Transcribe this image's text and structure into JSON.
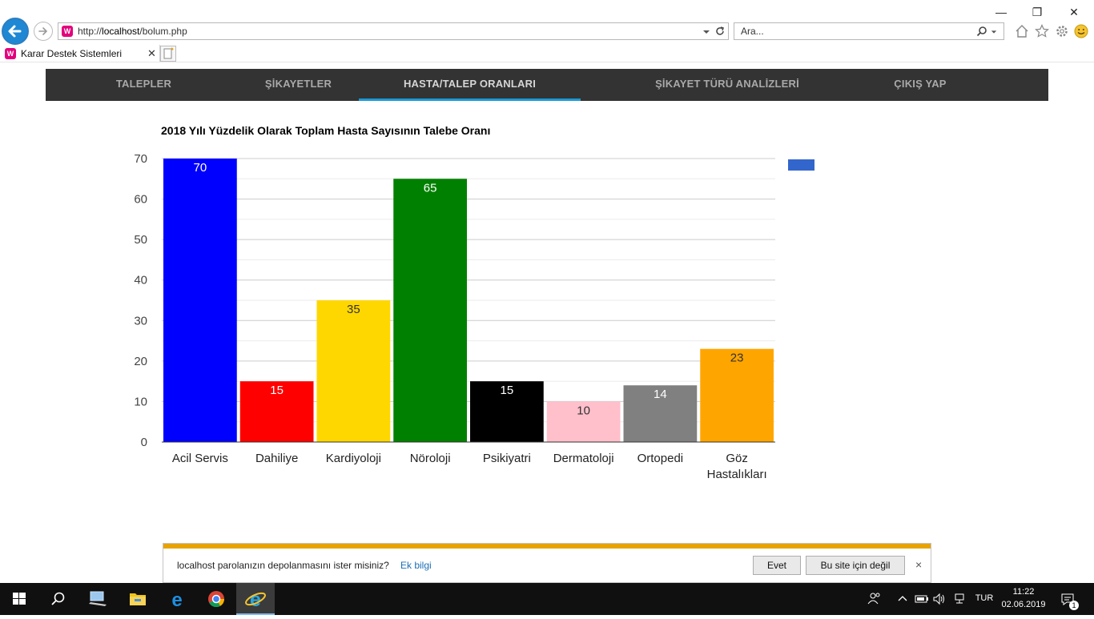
{
  "browser": {
    "address_prefix": "http://",
    "address_host": "localhost",
    "address_path": "/bolum.php",
    "search_placeholder": "Ara...",
    "favicon_letter": "W",
    "tab_title": "Karar Destek Sistemleri",
    "window_controls": {
      "minimize": "—",
      "restore": "❐",
      "close": "✕"
    },
    "icons": [
      "back-arrow-icon",
      "forward-arrow-icon",
      "dropdown-icon",
      "refresh-icon",
      "search-icon",
      "home-icon",
      "favorites-star-icon",
      "settings-gear-icon",
      "smiley-feedback-icon"
    ]
  },
  "nav": {
    "items": [
      {
        "label": "TALEPLER",
        "active": false
      },
      {
        "label": "ŞİKAYETLER",
        "active": false
      },
      {
        "label": "HASTA/TALEP ORANLARI",
        "active": true
      },
      {
        "label": "ŞİKAYET TÜRÜ ANALİZLERİ",
        "active": false
      },
      {
        "label": "ÇIKIŞ YAP",
        "active": false
      }
    ],
    "accent_color": "#1a9ad6",
    "background_color": "#333333"
  },
  "chart_data": {
    "type": "bar",
    "title": "2018 Yılı Yüzdelik Olarak Toplam Hasta Sayısının Talebe Oranı",
    "categories": [
      "Acil Servis",
      "Dahiliye",
      "Kardiyoloji",
      "Nöroloji",
      "Psikiyatri",
      "Dermatoloji",
      "Ortopedi",
      "Göz Hastalıkları"
    ],
    "values": [
      70,
      15,
      35,
      65,
      15,
      10,
      14,
      23
    ],
    "colors": [
      "#0000ff",
      "#ff0000",
      "#ffd700",
      "#008000",
      "#000000",
      "#ffc0cb",
      "#808080",
      "#ffa500"
    ],
    "label_colors": [
      "#ffffff",
      "#ffffff",
      "#333333",
      "#ffffff",
      "#ffffff",
      "#333333",
      "#ffffff",
      "#333333"
    ],
    "ylim": [
      0,
      70
    ],
    "yticks": [
      0,
      10,
      20,
      30,
      40,
      50,
      60,
      70
    ],
    "xlabel": "",
    "ylabel": "",
    "grid": true,
    "legend_placement": "top-right",
    "legend_color": "#3366cc"
  },
  "password_bar": {
    "message": "localhost parolanızın depolanmasını ister misiniz?",
    "link": "Ek bilgi",
    "yes_button": "Evet",
    "no_button": "Bu site için değil",
    "close": "×"
  },
  "taskbar": {
    "apps": [
      "windows-start-icon",
      "search-icon",
      "network-computer-icon",
      "file-explorer-icon",
      "edge-icon",
      "chrome-icon",
      "internet-explorer-icon"
    ],
    "language": "TUR",
    "time": "11:22",
    "date": "02.06.2019",
    "notification_count": "1"
  }
}
